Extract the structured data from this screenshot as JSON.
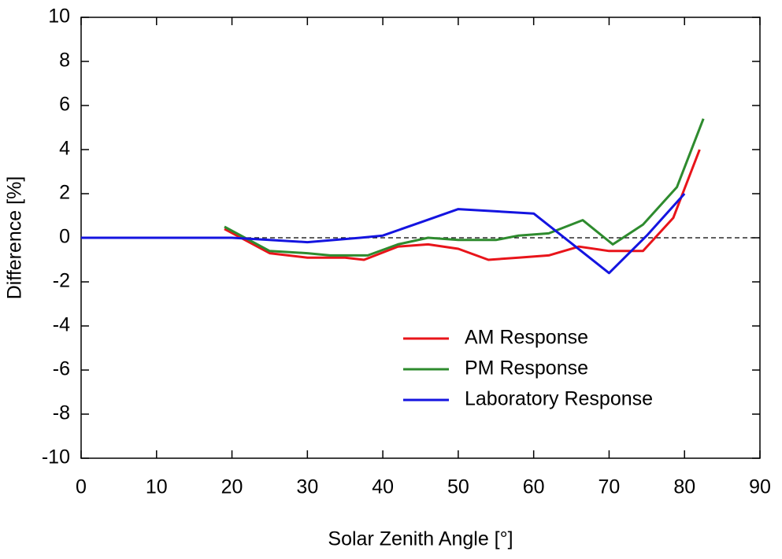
{
  "chart_data": {
    "type": "line",
    "xlabel": "Solar Zenith Angle [°]",
    "ylabel": "Difference [%]",
    "xlim": [
      0,
      90
    ],
    "xticks": [
      0,
      10,
      20,
      30,
      40,
      50,
      60,
      70,
      80,
      90
    ],
    "ylim": [
      -10,
      10
    ],
    "yticks": [
      -10,
      -8,
      -6,
      -4,
      -2,
      0,
      2,
      4,
      6,
      8,
      10
    ],
    "reference_line": 0,
    "legend": "lower right",
    "series": [
      {
        "name": "AM Response",
        "color": "#e8141a",
        "x": [
          19,
          25,
          30,
          35,
          37.5,
          42,
          46,
          50,
          54,
          58,
          62,
          66,
          70,
          74.5,
          78.5,
          82
        ],
        "values": [
          0.4,
          -0.7,
          -0.9,
          -0.9,
          -1.0,
          -0.4,
          -0.3,
          -0.5,
          -1.0,
          -0.9,
          -0.8,
          -0.4,
          -0.6,
          -0.6,
          0.9,
          4.0
        ]
      },
      {
        "name": "PM Response",
        "color": "#2e8b2e",
        "x": [
          19,
          25,
          30,
          33,
          38,
          42,
          46,
          50,
          55,
          58,
          62,
          66.5,
          70.5,
          74.5,
          79,
          82.5
        ],
        "values": [
          0.5,
          -0.6,
          -0.7,
          -0.8,
          -0.8,
          -0.3,
          0,
          -0.1,
          -0.1,
          0.1,
          0.2,
          0.8,
          -0.3,
          0.6,
          2.3,
          5.4
        ]
      },
      {
        "name": "Laboratory Response",
        "color": "#1414e0",
        "x": [
          0,
          10,
          20,
          25,
          30,
          37,
          40,
          45,
          50,
          55,
          60,
          70,
          75,
          80
        ],
        "values": [
          0,
          0,
          0,
          -0.1,
          -0.2,
          0,
          0.1,
          0.7,
          1.3,
          1.2,
          1.1,
          -1.6,
          0.1,
          2.0
        ]
      }
    ]
  }
}
